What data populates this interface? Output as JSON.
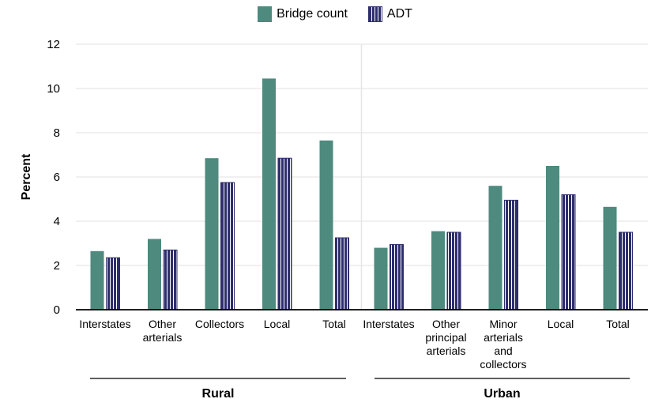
{
  "legend": {
    "bridge_label": "Bridge count",
    "adt_label": "ADT"
  },
  "colors": {
    "bridge": "#4e8a7e",
    "adt": "#2e2e6e",
    "grid": "#e6e6e6",
    "axis": "#000000"
  },
  "chart_data": {
    "type": "bar",
    "ylabel": "Percent",
    "xlabel": "",
    "ylim": [
      0,
      12
    ],
    "yticks": [
      0,
      2,
      4,
      6,
      8,
      10,
      12
    ],
    "grid": true,
    "legend_position": "top-center",
    "groups": [
      {
        "name": "Rural",
        "categories": [
          [
            "Interstates"
          ],
          [
            "Other",
            "arterials"
          ],
          [
            "Collectors"
          ],
          [
            "Local"
          ],
          [
            "Total"
          ]
        ]
      },
      {
        "name": "Urban",
        "categories": [
          [
            "Interstates"
          ],
          [
            "Other",
            "principal",
            "arterials"
          ],
          [
            "Minor",
            "arterials",
            "and",
            "collectors"
          ],
          [
            "Local"
          ],
          [
            "Total"
          ]
        ]
      }
    ],
    "series": [
      {
        "name": "Bridge count",
        "values": [
          2.65,
          3.2,
          6.85,
          10.45,
          7.65,
          2.8,
          3.55,
          5.6,
          6.5,
          4.65
        ]
      },
      {
        "name": "ADT",
        "values": [
          2.35,
          2.7,
          5.75,
          6.85,
          3.25,
          2.95,
          3.5,
          4.95,
          5.2,
          3.5
        ]
      }
    ]
  }
}
